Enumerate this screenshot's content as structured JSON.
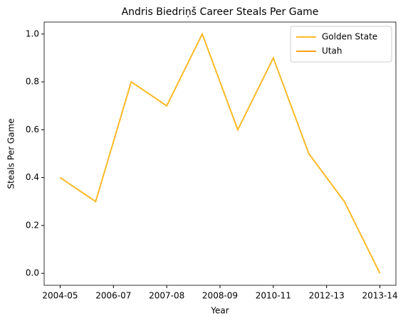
{
  "chart_data": {
    "type": "line",
    "title": "Andris Biedriņš Career Steals Per Game",
    "xlabel": "Year",
    "ylabel": "Steals Per Game",
    "x": [
      0,
      1,
      2,
      3,
      4,
      5,
      6,
      7,
      8,
      9
    ],
    "series": [
      {
        "name": "Golden State",
        "color": "#FDB927",
        "values": [
          0.4,
          0.3,
          0.8,
          0.7,
          1.0,
          0.6,
          0.9,
          0.5,
          0.3,
          0.0
        ]
      },
      {
        "name": "Utah",
        "color": "#F9A01B",
        "values": [
          null,
          null,
          null,
          null,
          null,
          null,
          null,
          null,
          null,
          0.0
        ]
      }
    ],
    "xlim": [
      -0.45,
      9.45
    ],
    "xticks": [
      {
        "value": 0,
        "label": "2004-05"
      },
      {
        "value": 1.5,
        "label": "2006-07"
      },
      {
        "value": 3,
        "label": "2007-08"
      },
      {
        "value": 4.5,
        "label": "2008-09"
      },
      {
        "value": 6,
        "label": "2010-11"
      },
      {
        "value": 7.5,
        "label": "2012-13"
      },
      {
        "value": 9,
        "label": "2013-14"
      }
    ],
    "ylim": [
      -0.05,
      1.05
    ],
    "yticks": [
      {
        "value": 0,
        "label": "0.0"
      },
      {
        "value": 0.2,
        "label": "0.2"
      },
      {
        "value": 0.4,
        "label": "0.4"
      },
      {
        "value": 0.6,
        "label": "0.6"
      },
      {
        "value": 0.8,
        "label": "0.8"
      },
      {
        "value": 1.0,
        "label": "1.0"
      }
    ],
    "grid": false,
    "legend": "upper right"
  }
}
